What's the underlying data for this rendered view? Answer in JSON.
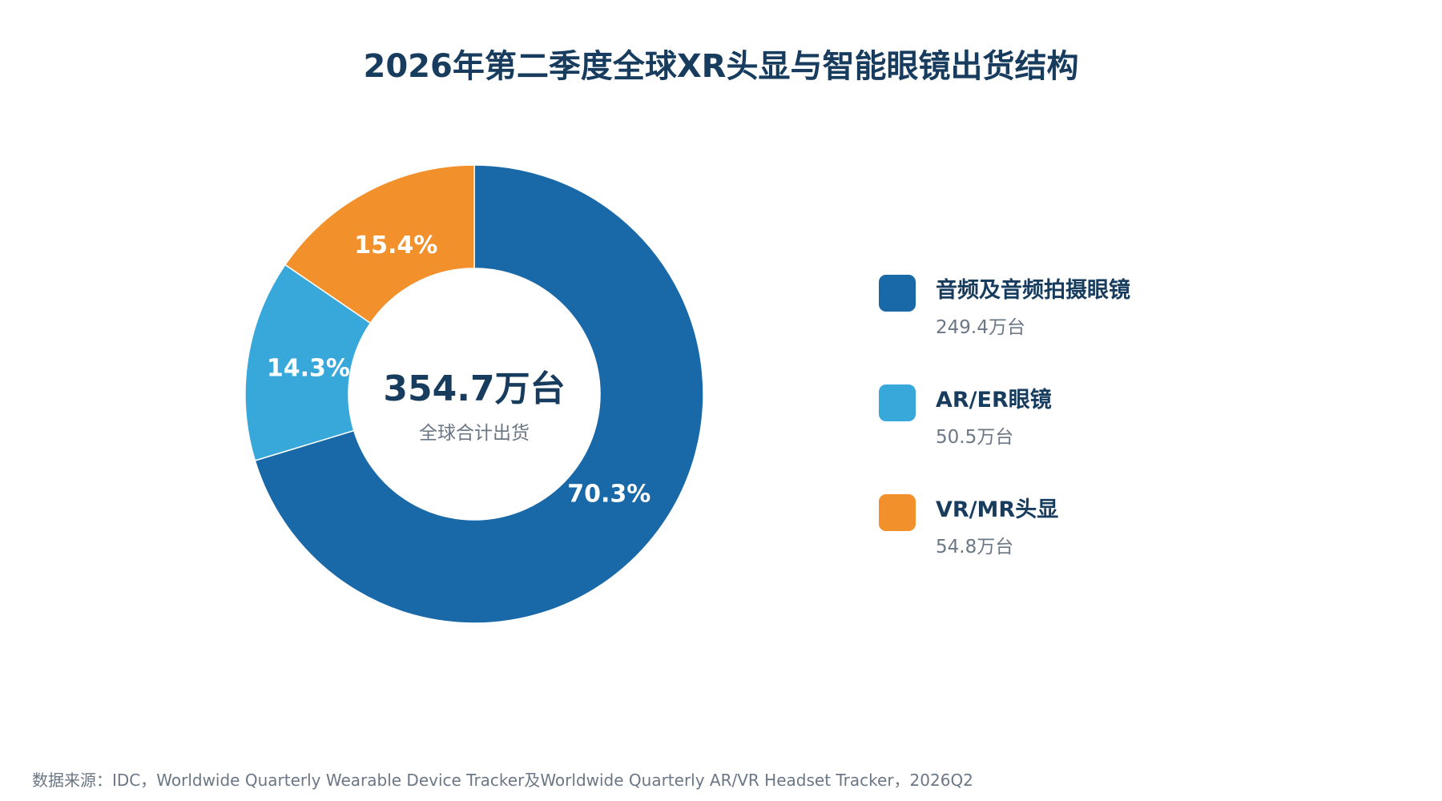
{
  "title": "2026年第二季度全球XR头显与智能眼镜出货结构",
  "chart_data": {
    "type": "pie",
    "style": "donut",
    "center_value": "354.7万台",
    "center_label": "全球合计出货",
    "unit": "万台",
    "slices": [
      {
        "name": "音频及音频拍摄眼镜",
        "value": 249.4,
        "value_label": "249.4万台",
        "percent_label": "70.3%",
        "color": "#1968A8"
      },
      {
        "name": "AR/ER眼镜",
        "value": 50.5,
        "value_label": "50.5万台",
        "percent_label": "14.3%",
        "color": "#38A8DB"
      },
      {
        "name": "VR/MR头显",
        "value": 54.8,
        "value_label": "54.8万台",
        "percent_label": "15.4%",
        "color": "#F2902C"
      }
    ],
    "legend_position": "right"
  },
  "source": "数据来源：IDC，Worldwide Quarterly Wearable Device Tracker及Worldwide Quarterly AR/VR Headset Tracker，2026Q2"
}
